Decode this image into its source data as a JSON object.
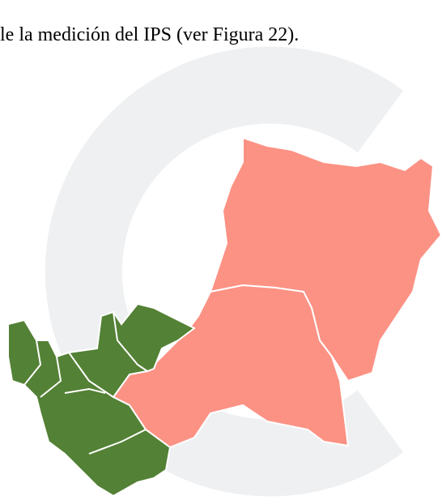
{
  "text": "le la medición del IPS (ver Figura 22)."
}
